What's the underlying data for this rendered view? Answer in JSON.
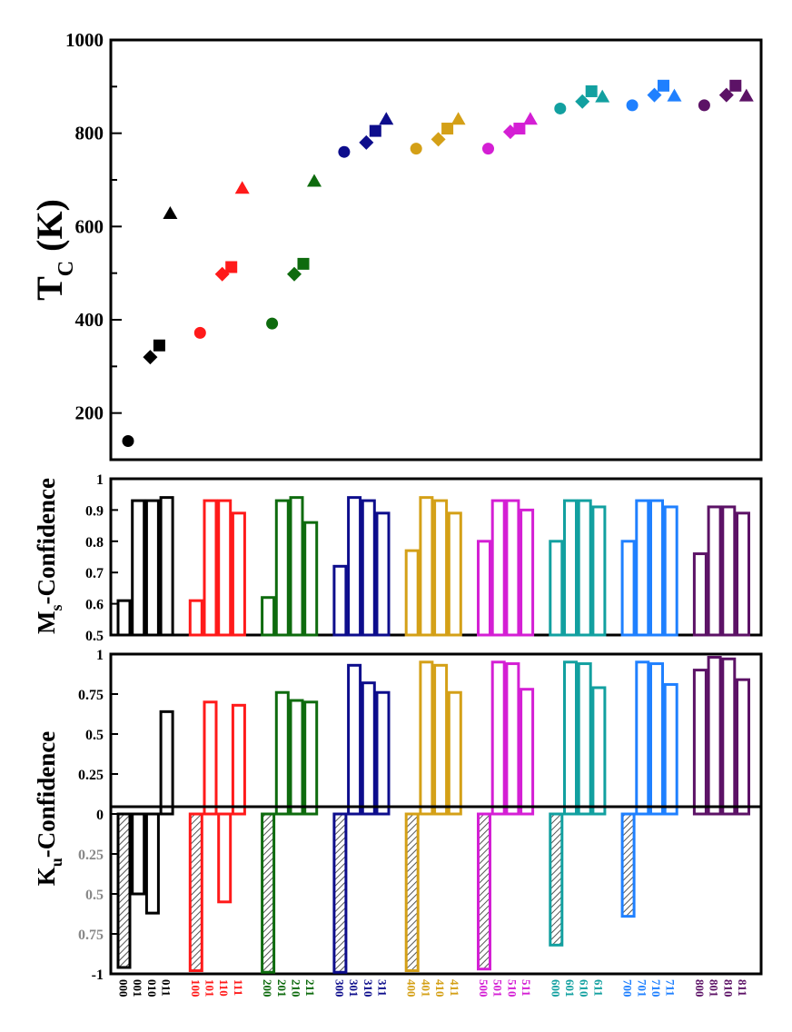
{
  "colors": {
    "0": "#000000",
    "1": "#ff1a1a",
    "2": "#0e6b0e",
    "3": "#0d0d8c",
    "4": "#d4a017",
    "5": "#d41fd4",
    "6": "#12a0a0",
    "7": "#1f80ff",
    "8": "#5c1266"
  },
  "chart_data": [
    {
      "type": "scatter",
      "ylabel_main": "T",
      "ylabel_sub": "C",
      "ylabel_tail": " (K)",
      "ylim": [
        100,
        1000
      ],
      "yticks": [
        200,
        400,
        600,
        800,
        1000
      ],
      "marker_order": [
        "circle",
        "diamond",
        "square",
        "triangle"
      ],
      "groups": [
        {
          "group": "0",
          "values": [
            140,
            320,
            345,
            628
          ]
        },
        {
          "group": "1",
          "values": [
            372,
            498,
            513,
            682
          ]
        },
        {
          "group": "2",
          "values": [
            392,
            498,
            520,
            697
          ]
        },
        {
          "group": "3",
          "values": [
            760,
            780,
            805,
            830
          ]
        },
        {
          "group": "4",
          "values": [
            767,
            787,
            810,
            830
          ]
        },
        {
          "group": "5",
          "values": [
            767,
            803,
            810,
            830
          ]
        },
        {
          "group": "6",
          "values": [
            853,
            868,
            890,
            878
          ]
        },
        {
          "group": "7",
          "values": [
            860,
            882,
            902,
            880
          ]
        },
        {
          "group": "8",
          "values": [
            860,
            882,
            902,
            880
          ]
        }
      ]
    },
    {
      "type": "bar",
      "ylabel_main": "M",
      "ylabel_sub": "s",
      "ylabel_tail": "-Confidence",
      "ylim": [
        0.5,
        1
      ],
      "yticks": [
        "0.5",
        "0.6",
        "0.7",
        "0.8",
        "0.9",
        "1"
      ],
      "values": [
        [
          0.61,
          0.93,
          0.93,
          0.94
        ],
        [
          0.61,
          0.93,
          0.93,
          0.89
        ],
        [
          0.62,
          0.93,
          0.94,
          0.86
        ],
        [
          0.72,
          0.94,
          0.93,
          0.89
        ],
        [
          0.77,
          0.94,
          0.93,
          0.89
        ],
        [
          0.8,
          0.93,
          0.93,
          0.9
        ],
        [
          0.8,
          0.93,
          0.93,
          0.91
        ],
        [
          0.8,
          0.93,
          0.93,
          0.91
        ],
        [
          0.76,
          0.91,
          0.91,
          0.89
        ]
      ]
    },
    {
      "type": "bar",
      "ylabel_main": "K",
      "ylabel_sub": "u",
      "ylabel_tail": "-Confidence",
      "ylim": [
        -1,
        1
      ],
      "yticks": [
        "-1",
        "0.75",
        "0.5",
        "0.25",
        "0",
        "0.25",
        "0.5",
        "0.75",
        "1"
      ],
      "ytick_values": [
        -1,
        -0.75,
        -0.5,
        -0.25,
        0,
        0.25,
        0.5,
        0.75,
        1
      ],
      "values": [
        [
          -0.96,
          -0.5,
          -0.62,
          0.64
        ],
        [
          -0.98,
          0.7,
          -0.55,
          0.68
        ],
        [
          -0.99,
          0.76,
          0.71,
          0.7
        ],
        [
          -0.99,
          0.93,
          0.82,
          0.76
        ],
        [
          -0.98,
          0.95,
          0.93,
          0.76
        ],
        [
          -0.97,
          0.95,
          0.94,
          0.78
        ],
        [
          -0.82,
          0.95,
          0.94,
          0.79
        ],
        [
          -0.64,
          0.95,
          0.94,
          0.81
        ],
        [
          0.9,
          0.98,
          0.97,
          0.84
        ]
      ]
    }
  ],
  "categories": [
    [
      "000",
      "001",
      "010",
      "011"
    ],
    [
      "100",
      "101",
      "110",
      "111"
    ],
    [
      "200",
      "201",
      "210",
      "211"
    ],
    [
      "300",
      "301",
      "310",
      "311"
    ],
    [
      "400",
      "401",
      "410",
      "411"
    ],
    [
      "500",
      "501",
      "510",
      "511"
    ],
    [
      "600",
      "601",
      "610",
      "611"
    ],
    [
      "700",
      "701",
      "710",
      "711"
    ],
    [
      "800",
      "801",
      "810",
      "811"
    ]
  ]
}
